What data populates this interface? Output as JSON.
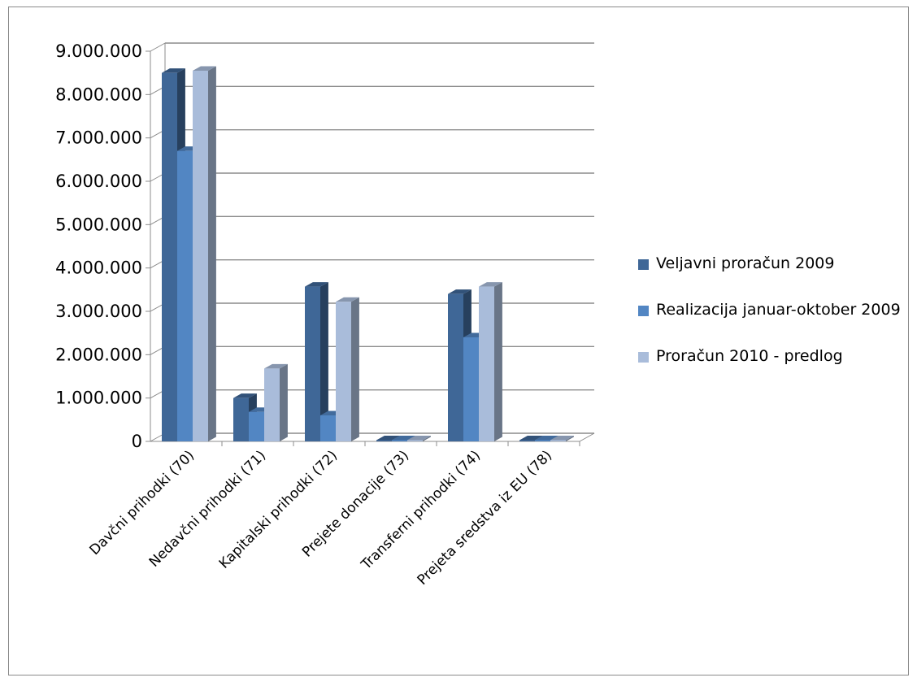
{
  "chart_data": {
    "type": "bar",
    "title": "",
    "xlabel": "",
    "ylabel": "",
    "ylim": [
      0,
      9000000
    ],
    "y_ticks": [
      "0",
      "1.000.000",
      "2.000.000",
      "3.000.000",
      "4.000.000",
      "5.000.000",
      "6.000.000",
      "7.000.000",
      "8.000.000",
      "9.000.000"
    ],
    "grid": true,
    "legend_position": "right",
    "categories": [
      "Davčni prihodki (70)",
      "Nedavčni prihodki (71)",
      "Kapitalski prihodki (72)",
      "Prejete donacije (73)",
      "Transferni prihodki (74)",
      "Prejeta sredstva iz EU (78)"
    ],
    "series": [
      {
        "name": "Veljavni proračun  2009",
        "color": "#3f6797",
        "values": [
          8500000,
          1000000,
          3570000,
          20000,
          3400000,
          0
        ]
      },
      {
        "name": "Realizacija januar-oktober 2009",
        "color": "#5286c3",
        "values": [
          6700000,
          680000,
          600000,
          10000,
          2400000,
          0
        ]
      },
      {
        "name": "Proračun 2010 - predlog",
        "color": "#a9bcda",
        "values": [
          8550000,
          1680000,
          3220000,
          10000,
          3570000,
          0
        ]
      }
    ]
  }
}
